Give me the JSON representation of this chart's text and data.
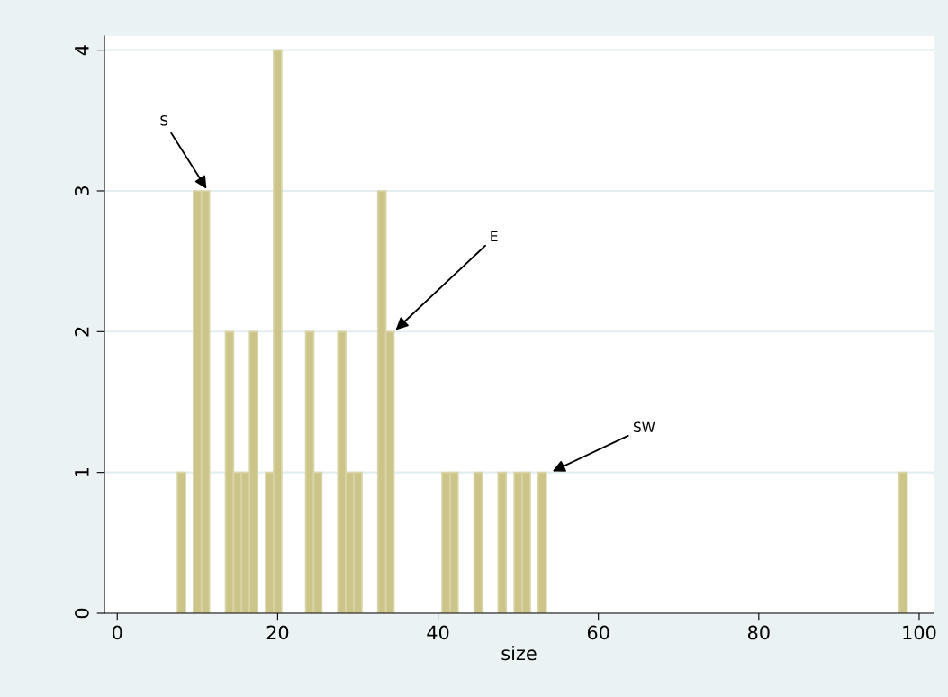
{
  "chart_data": {
    "type": "histogram",
    "xlabel": "size",
    "color": "#ccc589",
    "bins": [
      7.5,
      8.5,
      9.5,
      10.5,
      11.5,
      12.5,
      13.5,
      14.5,
      15.5,
      16.5,
      17.5,
      18.5,
      19.5,
      20.5,
      21.5,
      22.5,
      23.5,
      24.5,
      25.5,
      26.5,
      27.5,
      28.5,
      29.5,
      30.5,
      31.5,
      32.5,
      33.5,
      34.5,
      35.5,
      36.5,
      37.5,
      38.5,
      39.5,
      40.5,
      41.5,
      42.5,
      43.5,
      44.5,
      45.5,
      46.5,
      47.5,
      48.5,
      49.5,
      50.5,
      51.5,
      52.5,
      53.5,
      54.5,
      55.5,
      56.5,
      57.5,
      58.5,
      59.5,
      60.5,
      61.5,
      62.5,
      63.5,
      64.5,
      65.5,
      66.5,
      67.5,
      68.5,
      69.5,
      70.5,
      71.5,
      72.5,
      73.5,
      74.5,
      75.5,
      76.5,
      77.5,
      78.5,
      79.5,
      80.5,
      81.5,
      82.5,
      83.5,
      84.5,
      85.5,
      86.5,
      87.5,
      88.5,
      89.5,
      90.5,
      91.5,
      92.5,
      93.5,
      94.5,
      95.5,
      96.5,
      97.5,
      98.5
    ],
    "values": [
      1,
      0,
      3,
      3,
      0,
      0,
      2,
      1,
      1,
      2,
      0,
      1,
      4,
      0,
      0,
      0,
      2,
      1,
      0,
      0,
      2,
      1,
      1,
      0,
      0,
      3,
      2,
      0,
      0,
      0,
      0,
      0,
      0,
      1,
      1,
      0,
      0,
      1,
      0,
      0,
      1,
      0,
      1,
      1,
      0,
      1,
      0,
      0,
      0,
      0,
      0,
      0,
      0,
      0,
      0,
      0,
      0,
      0,
      0,
      0,
      0,
      0,
      0,
      0,
      0,
      0,
      0,
      0,
      0,
      0,
      0,
      0,
      0,
      0,
      0,
      0,
      0,
      0,
      0,
      0,
      0,
      0,
      0,
      0,
      0,
      0,
      0,
      0,
      0,
      0,
      1
    ],
    "xlim": [
      -1.6,
      101.8
    ],
    "xticks": [
      0,
      20,
      40,
      60,
      80,
      100
    ],
    "ylim": [
      0,
      4.1
    ],
    "yticks": [
      0,
      1,
      2,
      3,
      4
    ],
    "grid": "y",
    "annotations": [
      {
        "text": "S",
        "x": 11.3,
        "y": 3
      },
      {
        "text": "E",
        "x": 34.5,
        "y": 2
      },
      {
        "text": "SW",
        "x": 54,
        "y": 1
      }
    ]
  }
}
